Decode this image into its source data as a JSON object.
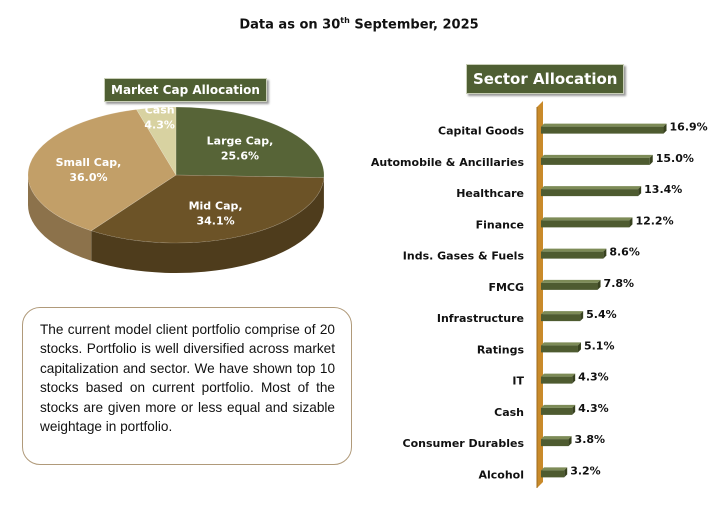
{
  "header": {
    "date_prefix": "Data as on 30",
    "date_sup": "th",
    "date_suffix": " September, 2025"
  },
  "colors": {
    "large_cap": "#576437",
    "mid_cap": "#6c5327",
    "small_cap": "#c29f68",
    "cash": "#d8d2a1",
    "bar": "#4e5b30",
    "axis": "#c98a2a"
  },
  "chart_data": [
    {
      "type": "pie",
      "title": "Market Cap Allocation",
      "slices": [
        {
          "name": "Large Cap",
          "value": 25.6,
          "label": "Large Cap,",
          "value_label": "25.6%"
        },
        {
          "name": "Mid Cap",
          "value": 34.1,
          "label": "Mid Cap,",
          "value_label": "34.1%"
        },
        {
          "name": "Small Cap",
          "value": 36.0,
          "label": "Small Cap,",
          "value_label": "36.0%"
        },
        {
          "name": "Cash",
          "value": 4.3,
          "label": "Cash",
          "value_label": "4.3%"
        }
      ]
    },
    {
      "type": "bar",
      "orientation": "horizontal",
      "title": "Sector Allocation",
      "categories": [
        "Capital Goods",
        "Automobile & Ancillaries",
        "Healthcare",
        "Finance",
        "Inds. Gases & Fuels",
        "FMCG",
        "Infrastructure",
        "Ratings",
        "IT",
        "Cash",
        "Consumer Durables",
        "Alcohol"
      ],
      "values": [
        16.9,
        15.0,
        13.4,
        12.2,
        8.6,
        7.8,
        5.4,
        5.1,
        4.3,
        4.3,
        3.8,
        3.2
      ],
      "value_labels": [
        "16.9%",
        "15.0%",
        "13.4%",
        "12.2%",
        "8.6%",
        "7.8%",
        "5.4%",
        "5.1%",
        "4.3%",
        "4.3%",
        "3.8%",
        "3.2%"
      ],
      "xlim": [
        0,
        17
      ]
    }
  ],
  "note": {
    "text": "The current model client portfolio comprise of 20 stocks. Portfolio is well diversified across market capitalization and sector. We have shown top 10 stocks based on current portfolio. Most of the stocks are given more or less equal  and sizable weightage  in portfolio."
  }
}
